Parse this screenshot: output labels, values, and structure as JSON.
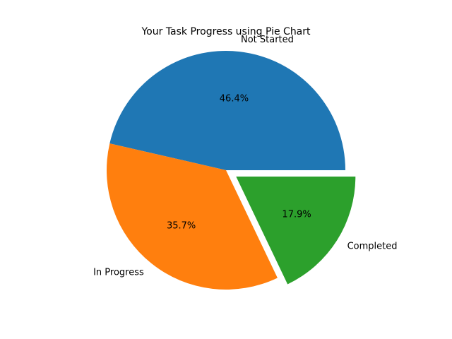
{
  "chart_data": {
    "type": "pie",
    "title": "Your Task Progress using Pie Chart",
    "categories": [
      "Not Started",
      "In Progress",
      "Completed"
    ],
    "values": [
      46.4,
      35.7,
      17.9
    ],
    "percent_labels": [
      "46.4%",
      "35.7%",
      "17.9%"
    ],
    "colors": [
      "#1f77b4",
      "#ff7f0e",
      "#2ca02c"
    ],
    "exploded": [
      false,
      false,
      true
    ],
    "start_angle_deg": 0,
    "direction": "counterclockwise",
    "legend": "none"
  }
}
